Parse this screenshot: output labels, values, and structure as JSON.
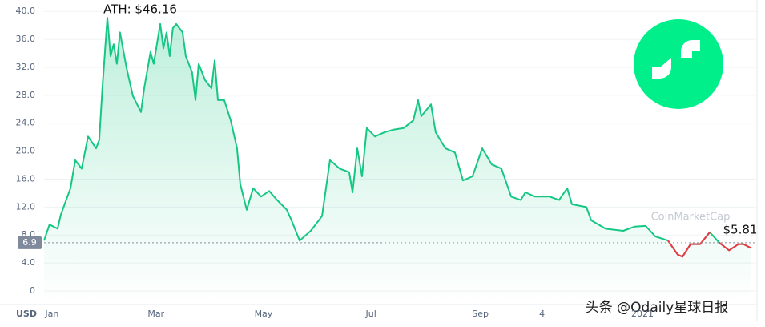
{
  "chart_data": {
    "type": "line",
    "currency": "USD",
    "ath_label": "ATH: $46.16",
    "last_label": "$5.81",
    "baseline": 6.9,
    "watermarks": [
      "CoinMarketCap",
      "头条 @Odaily星球日报"
    ],
    "color": "#16c784",
    "below_color": "#ea3943",
    "xlim": [
      -4.5,
      396.8
    ],
    "ylim": [
      0,
      40
    ],
    "xticks": [
      {
        "value": 0,
        "label": "Jan"
      },
      {
        "value": 59,
        "label": "Mar"
      },
      {
        "value": 120,
        "label": "May"
      },
      {
        "value": 181,
        "label": "Jul"
      },
      {
        "value": 243,
        "label": "Sep"
      },
      {
        "value": 278,
        "label": "4"
      },
      {
        "value": 335,
        "label": "2021"
      }
    ],
    "yticks": [
      0,
      {
        "value": 4,
        "label": "4.0"
      },
      {
        "value": 8,
        "label": "8.0"
      },
      {
        "value": 12,
        "label": "12.0"
      },
      {
        "value": 16,
        "label": "16.0"
      },
      {
        "value": 20,
        "label": "20.0"
      },
      {
        "value": 24,
        "label": "24.0"
      },
      {
        "value": 28,
        "label": "28.0"
      },
      {
        "value": 32,
        "label": "32.0"
      },
      {
        "value": 36,
        "label": "36.0"
      },
      {
        "value": 40,
        "label": "40.0"
      }
    ],
    "grid": true,
    "x": [
      -4.5,
      -1.4,
      3.2,
      5,
      10.5,
      13.2,
      16.8,
      20.5,
      25,
      26.8,
      28.6,
      31.4,
      33.2,
      35,
      36.8,
      38.6,
      42.3,
      45.9,
      50.5,
      52.3,
      55.9,
      57.7,
      61.4,
      63.2,
      65,
      66.8,
      68.6,
      70.5,
      74.1,
      75.9,
      79.5,
      81.4,
      83.2,
      86.8,
      90.5,
      92.3,
      94.1,
      97.7,
      101.4,
      105,
      106.8,
      110.5,
      114.1,
      118.6,
      123.2,
      127.7,
      133.2,
      135.9,
      140.5,
      146.8,
      153.2,
      157.7,
      163.2,
      168.6,
      170.5,
      173.2,
      175.9,
      178.6,
      183.2,
      188.6,
      194.1,
      199.5,
      205,
      207.7,
      209.5,
      215,
      217.7,
      223.2,
      228.6,
      233.2,
      238.6,
      244.1,
      249.5,
      255,
      260.5,
      265.9,
      268.6,
      274.1,
      282.3,
      287.7,
      292.3,
      295,
      303.2,
      305.9,
      314.1,
      324.1,
      330.5,
      336.8,
      342.3,
      349.5,
      355,
      357.7,
      362.3,
      367.7,
      373.2,
      378.6,
      384.1,
      389.5,
      392.3,
      396.8
    ],
    "values": [
      7.2,
      9.5,
      8.9,
      10.9,
      14.7,
      18.7,
      17.5,
      22.1,
      20.4,
      21.6,
      29.0,
      39.1,
      33.6,
      35.3,
      32.5,
      37.0,
      31.9,
      27.9,
      25.6,
      29.0,
      34.2,
      32.5,
      38.2,
      34.7,
      37.0,
      33.6,
      37.6,
      38.2,
      37.0,
      33.6,
      31.3,
      27.3,
      32.5,
      30.2,
      29.0,
      33.0,
      27.3,
      27.3,
      24.4,
      20.4,
      15.3,
      11.6,
      14.7,
      13.5,
      14.3,
      13.0,
      11.6,
      10.1,
      7.2,
      8.6,
      10.7,
      18.7,
      17.5,
      17.0,
      14.1,
      20.4,
      16.4,
      23.3,
      22.1,
      22.7,
      23.1,
      23.3,
      24.4,
      27.3,
      25.0,
      26.7,
      22.7,
      20.4,
      19.8,
      15.8,
      16.4,
      20.4,
      18.1,
      17.5,
      13.5,
      13.0,
      14.1,
      13.5,
      13.5,
      13.0,
      14.7,
      12.4,
      12.0,
      10.1,
      8.9,
      8.6,
      9.2,
      9.3,
      7.8,
      7.2,
      5.2,
      4.9,
      6.7,
      6.7,
      8.4,
      6.9,
      5.8,
      6.7,
      6.7,
      6.1
    ]
  }
}
